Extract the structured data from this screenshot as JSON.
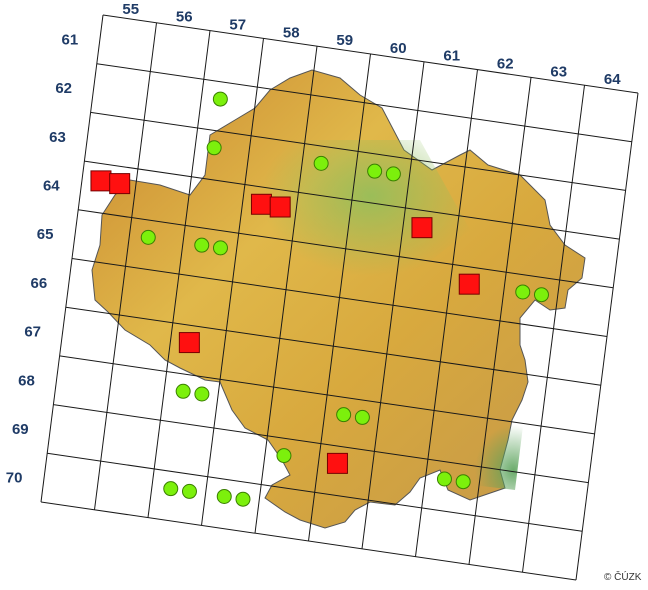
{
  "map": {
    "col_labels": [
      "55",
      "56",
      "57",
      "58",
      "59",
      "60",
      "61",
      "62",
      "63",
      "64"
    ],
    "row_labels": [
      "61",
      "62",
      "63",
      "64",
      "65",
      "66",
      "67",
      "68",
      "69",
      "70"
    ],
    "copyright": "© ČÚZK",
    "colors": {
      "grid": "#1a1a1a",
      "label": "#1f3b66",
      "record_marker": "#7cf00c",
      "highlight_marker": "#ff1010"
    },
    "records": [
      {
        "type": "circle",
        "cell": "6257"
      },
      {
        "type": "circle",
        "cell": "6357"
      },
      {
        "type": "circle",
        "cell": "6359"
      },
      {
        "type": "circle",
        "cell": "6360"
      },
      {
        "type": "circle",
        "cell": "6360"
      },
      {
        "type": "circle",
        "cell": "6557"
      },
      {
        "type": "circle",
        "cell": "6557"
      },
      {
        "type": "circle",
        "cell": "6556"
      },
      {
        "type": "circle",
        "cell": "6563"
      },
      {
        "type": "circle",
        "cell": "6563"
      },
      {
        "type": "circle",
        "cell": "6857"
      },
      {
        "type": "circle",
        "cell": "6857"
      },
      {
        "type": "circle",
        "cell": "6860"
      },
      {
        "type": "circle",
        "cell": "6860"
      },
      {
        "type": "circle",
        "cell": "6962"
      },
      {
        "type": "circle",
        "cell": "6962"
      },
      {
        "type": "circle",
        "cell": "6959"
      },
      {
        "type": "circle",
        "cell": "7057"
      },
      {
        "type": "circle",
        "cell": "7057"
      },
      {
        "type": "circle",
        "cell": "7058"
      },
      {
        "type": "circle",
        "cell": "7058"
      },
      {
        "type": "square",
        "cell": "6455"
      },
      {
        "type": "square",
        "cell": "6455"
      },
      {
        "type": "square",
        "cell": "6458"
      },
      {
        "type": "square",
        "cell": "6458"
      },
      {
        "type": "square",
        "cell": "6461"
      },
      {
        "type": "square",
        "cell": "6562"
      },
      {
        "type": "square",
        "cell": "6757"
      },
      {
        "type": "square",
        "cell": "6960"
      }
    ]
  }
}
